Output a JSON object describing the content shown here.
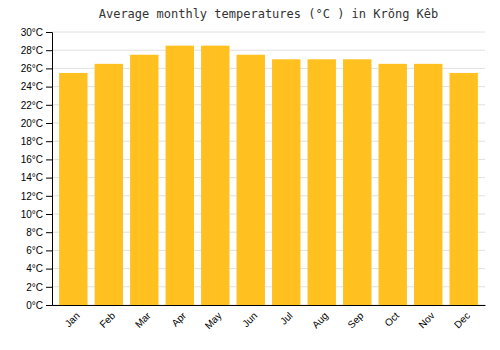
{
  "chart_data": {
    "type": "bar",
    "title": "Average monthly temperatures (°C ) in Krŏng Kêb",
    "categories": [
      "Jan",
      "Feb",
      "Mar",
      "Apr",
      "May",
      "Jun",
      "Jul",
      "Aug",
      "Sep",
      "Oct",
      "Nov",
      "Dec"
    ],
    "values": [
      25.5,
      26.5,
      27.5,
      28.5,
      28.5,
      27.5,
      27.0,
      27.0,
      27.0,
      26.5,
      26.5,
      25.5
    ],
    "color": "#FFC020",
    "ylim": [
      0,
      30
    ],
    "yticks": [
      {
        "value": 0,
        "label": "0°C"
      },
      {
        "value": 2,
        "label": "2°C"
      },
      {
        "value": 4,
        "label": "4°C"
      },
      {
        "value": 6,
        "label": "6°C"
      },
      {
        "value": 8,
        "label": "8°C"
      },
      {
        "value": 10,
        "label": "10°C"
      },
      {
        "value": 12,
        "label": "12°C"
      },
      {
        "value": 14,
        "label": "14°C"
      },
      {
        "value": 16,
        "label": "16°C"
      },
      {
        "value": 18,
        "label": "18°C"
      },
      {
        "value": 20,
        "label": "20°C"
      },
      {
        "value": 22,
        "label": "22°C"
      },
      {
        "value": 24,
        "label": "24°C"
      },
      {
        "value": 26,
        "label": "26°C"
      },
      {
        "value": 28,
        "label": "28°C"
      },
      {
        "value": 30,
        "label": "30°C"
      }
    ],
    "grid": true
  }
}
